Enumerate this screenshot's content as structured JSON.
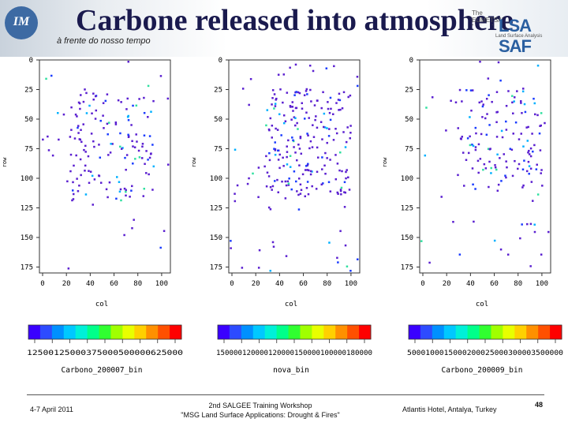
{
  "header": {
    "logo_text": "IM",
    "title": "Carbone released into atmosphere",
    "subtitle": "à frente do nosso tempo",
    "saf_small_text": "The EUMETSAT Network of Satellite Application Facilities",
    "saf_brand": "LSA SAF",
    "saf_sub": "Land Surface Analysis"
  },
  "panels": [
    {
      "yticks": [
        "0",
        "25",
        "50",
        "75",
        "100",
        "125",
        "150",
        "175"
      ],
      "xticks": [
        "0",
        "20",
        "40",
        "60",
        "80",
        "100"
      ],
      "ylabel": "row",
      "xlabel": "col",
      "colorbar_labels": "12500125000375000500000625000",
      "filename": "Carbono_200007_bin"
    },
    {
      "yticks": [
        "0",
        "25",
        "50",
        "75",
        "100",
        "125",
        "150",
        "175"
      ],
      "xticks": [
        "0",
        "20",
        "40",
        "60",
        "80",
        "100"
      ],
      "ylabel": "row",
      "xlabel": "col",
      "colorbar_labels": "150000120000120000150000100000180000",
      "filename": "nova_bin"
    },
    {
      "yticks": [
        "0",
        "25",
        "50",
        "75",
        "100",
        "125",
        "150",
        "175"
      ],
      "xticks": [
        "0",
        "20",
        "40",
        "60",
        "80",
        "100"
      ],
      "ylabel": "row",
      "xlabel": "col",
      "colorbar_labels": "5000100015000200025000300003500000",
      "filename": "Carbono_200009_bin"
    }
  ],
  "footer": {
    "date": "4-7 April 2011",
    "workshop_line1": "2nd SALGEE Training Workshop",
    "workshop_line2": "\"MSG Land Surface Applications: Drought & Fires\"",
    "location": "Atlantis Hotel, Antalya, Turkey",
    "page": "48"
  }
}
